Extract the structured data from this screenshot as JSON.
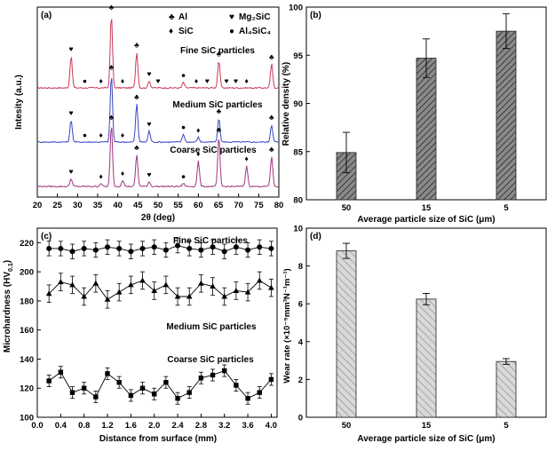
{
  "chart_data": [
    {
      "type": "line",
      "panel": "(a)",
      "xlabel": "2θ (deg)",
      "ylabel": "Intesity (a.u.)",
      "xlim": [
        20,
        80
      ],
      "x_ticks": [
        20,
        25,
        30,
        35,
        40,
        45,
        50,
        55,
        60,
        65,
        70,
        75,
        80
      ],
      "legend": [
        {
          "symbol": "♣",
          "label": "Al"
        },
        {
          "symbol": "♥",
          "label": "Mg₂SiC"
        },
        {
          "symbol": "♦",
          "label": "SiC"
        },
        {
          "symbol": "●",
          "label": "Al₄SiC₄"
        }
      ],
      "series": [
        {
          "name": "Fine SiC particles",
          "color": "#cc3a55",
          "peaks": [
            [
              28.4,
              40
            ],
            [
              38.4,
              92
            ],
            [
              44.7,
              45
            ],
            [
              47.8,
              9
            ],
            [
              56.3,
              7
            ],
            [
              65.1,
              34
            ],
            [
              78.2,
              30
            ]
          ],
          "markers": [
            {
              "x": 28.4,
              "sym": "♥"
            },
            {
              "x": 31.8,
              "sym": "●"
            },
            {
              "x": 35.8,
              "sym": "♦"
            },
            {
              "x": 38.4,
              "sym": "♣"
            },
            {
              "x": 41.2,
              "sym": "♦"
            },
            {
              "x": 44.7,
              "sym": "♣"
            },
            {
              "x": 47.8,
              "sym": "♥"
            },
            {
              "x": 50.0,
              "sym": "♥"
            },
            {
              "x": 56.3,
              "sym": "●"
            },
            {
              "x": 59.5,
              "sym": "♦"
            },
            {
              "x": 62.2,
              "sym": "♥"
            },
            {
              "x": 65.1,
              "sym": "♣"
            },
            {
              "x": 67.0,
              "sym": "♥"
            },
            {
              "x": 69.3,
              "sym": "♥"
            },
            {
              "x": 72.0,
              "sym": "♦"
            },
            {
              "x": 78.2,
              "sym": "♣"
            }
          ]
        },
        {
          "name": "Medium SiC particles",
          "color": "#3a47c2",
          "peaks": [
            [
              28.4,
              28
            ],
            [
              38.4,
              85
            ],
            [
              44.7,
              48
            ],
            [
              47.8,
              14
            ],
            [
              56.3,
              10
            ],
            [
              60.0,
              6
            ],
            [
              65.1,
              30
            ],
            [
              78.2,
              22
            ]
          ],
          "markers": [
            {
              "x": 28.4,
              "sym": "♥"
            },
            {
              "x": 31.8,
              "sym": "●"
            },
            {
              "x": 35.8,
              "sym": "♦"
            },
            {
              "x": 38.4,
              "sym": "♣"
            },
            {
              "x": 41.2,
              "sym": "♦"
            },
            {
              "x": 44.7,
              "sym": "♣"
            },
            {
              "x": 47.8,
              "sym": "♥"
            },
            {
              "x": 56.3,
              "sym": "●"
            },
            {
              "x": 60.0,
              "sym": "♦"
            },
            {
              "x": 65.1,
              "sym": "♣"
            },
            {
              "x": 78.2,
              "sym": "♣"
            }
          ]
        },
        {
          "name": "Coarse SiC particles",
          "color": "#a0367f",
          "peaks": [
            [
              28.4,
              10
            ],
            [
              35.8,
              4
            ],
            [
              38.4,
              78
            ],
            [
              41.2,
              8
            ],
            [
              44.7,
              40
            ],
            [
              47.8,
              6
            ],
            [
              56.3,
              4
            ],
            [
              60.0,
              32
            ],
            [
              65.1,
              62
            ],
            [
              72.0,
              26
            ],
            [
              78.2,
              38
            ]
          ],
          "markers": [
            {
              "x": 28.4,
              "sym": "♥"
            },
            {
              "x": 35.8,
              "sym": "♦"
            },
            {
              "x": 38.4,
              "sym": "♣"
            },
            {
              "x": 41.2,
              "sym": "♦"
            },
            {
              "x": 44.7,
              "sym": "♣"
            },
            {
              "x": 47.8,
              "sym": "♥"
            },
            {
              "x": 56.3,
              "sym": "●"
            },
            {
              "x": 60.0,
              "sym": "♦"
            },
            {
              "x": 65.1,
              "sym": "♣"
            },
            {
              "x": 72.0,
              "sym": "♦"
            },
            {
              "x": 78.2,
              "sym": "♣"
            }
          ]
        }
      ]
    },
    {
      "type": "bar",
      "panel": "(b)",
      "xlabel": "Average particle size of SiC (μm)",
      "ylabel": "Relative density (%)",
      "categories": [
        "50",
        "15",
        "5"
      ],
      "values": [
        84.9,
        94.7,
        97.5
      ],
      "errors": [
        2.1,
        2.0,
        1.8
      ],
      "ylim": [
        80,
        100
      ],
      "y_ticks": [
        80,
        85,
        90,
        95,
        100
      ],
      "fill": "#666666"
    },
    {
      "type": "line",
      "panel": "(c)",
      "xlabel": "Distance from surface (mm)",
      "ylabel": "Microhardness (HV",
      "ylabel_sub": "0.1",
      "xlim": [
        0,
        4.1
      ],
      "ylim": [
        100,
        230
      ],
      "x_ticks": [
        0.0,
        0.4,
        0.8,
        1.2,
        1.6,
        2.0,
        2.4,
        2.8,
        3.2,
        3.6,
        4.0
      ],
      "y_ticks": [
        100,
        120,
        140,
        160,
        180,
        200,
        220
      ],
      "x": [
        0.2,
        0.4,
        0.6,
        0.8,
        1.0,
        1.2,
        1.4,
        1.6,
        1.8,
        2.0,
        2.2,
        2.4,
        2.6,
        2.8,
        3.0,
        3.2,
        3.4,
        3.6,
        3.8,
        4.0
      ],
      "series": [
        {
          "name": "Fine SiC particles",
          "marker": "circle",
          "values": [
            216,
            216,
            214,
            216,
            215,
            217,
            216,
            214,
            216,
            217,
            215,
            218,
            216,
            215,
            217,
            214,
            217,
            215,
            217,
            216
          ],
          "errors": [
            5,
            5,
            5,
            5,
            5,
            5,
            5,
            5,
            5,
            5,
            5,
            5,
            5,
            5,
            5,
            5,
            5,
            5,
            5,
            5
          ]
        },
        {
          "name": "Medium SiC particles",
          "marker": "triangle",
          "values": [
            185,
            193,
            191,
            183,
            192,
            181,
            186,
            191,
            194,
            187,
            191,
            183,
            183,
            192,
            190,
            183,
            187,
            186,
            194,
            189
          ],
          "errors": [
            6,
            6,
            6,
            6,
            6,
            6,
            6,
            6,
            6,
            6,
            6,
            6,
            6,
            6,
            6,
            6,
            6,
            6,
            6,
            6
          ]
        },
        {
          "name": "Coarse SiC particles",
          "marker": "square",
          "values": [
            125,
            131,
            117,
            120,
            114,
            130,
            124,
            115,
            120,
            116,
            124,
            113,
            117,
            127,
            129,
            132,
            122,
            113,
            117,
            126
          ],
          "errors": [
            4,
            4,
            4,
            4,
            4,
            4,
            4,
            4,
            4,
            4,
            4,
            4,
            4,
            4,
            4,
            4,
            4,
            4,
            4,
            4
          ]
        }
      ]
    },
    {
      "type": "bar",
      "panel": "(d)",
      "xlabel": "Average particle size of SiC (μm)",
      "ylabel": "Wear rate (×10⁻⁵mm³N⁻¹m⁻¹)",
      "categories": [
        "50",
        "15",
        "5"
      ],
      "values": [
        8.8,
        6.25,
        2.95
      ],
      "errors": [
        0.4,
        0.3,
        0.15
      ],
      "ylim": [
        0,
        10
      ],
      "y_ticks": [
        0,
        2,
        4,
        6,
        8,
        10
      ],
      "fill": "#bdbdbd"
    }
  ]
}
